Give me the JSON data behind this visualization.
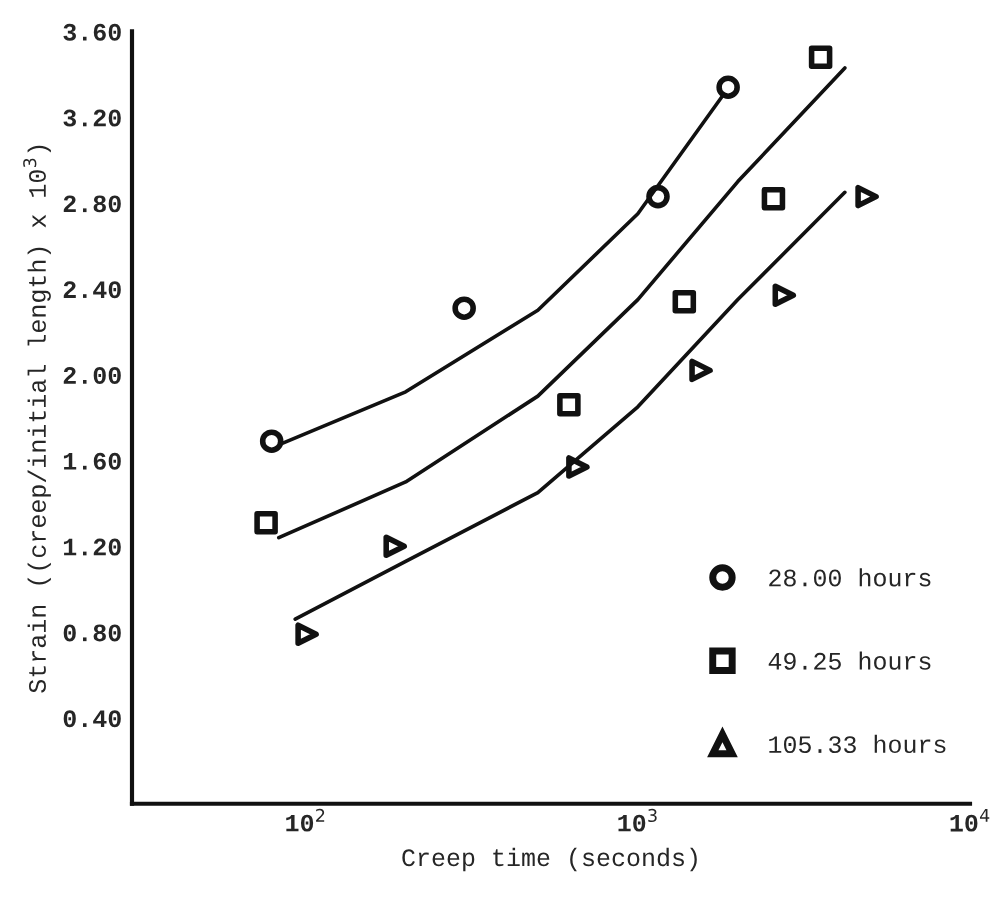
{
  "chart_data": {
    "type": "scatter",
    "xlabel": "Creep time (seconds)",
    "ylabel": "Strain ((creep/initial length) x 10$^{3}$)",
    "log": "x",
    "xlim": [
      30,
      10000
    ],
    "ylim": [
      0,
      3.6
    ],
    "xticks": [
      {
        "value": 100,
        "label": "10$^{2}$"
      },
      {
        "value": 1000,
        "label": "10$^{3}$"
      },
      {
        "value": 10000,
        "label": "10$^{4}$"
      }
    ],
    "yticks": [
      {
        "value": 0.4,
        "label": "0.40"
      },
      {
        "value": 0.8,
        "label": "0.80"
      },
      {
        "value": 1.2,
        "label": "1.20"
      },
      {
        "value": 1.6,
        "label": "1.60"
      },
      {
        "value": 2.0,
        "label": "2.00"
      },
      {
        "value": 2.4,
        "label": "2.40"
      },
      {
        "value": 2.8,
        "label": "2.80"
      },
      {
        "value": 3.2,
        "label": "3.20"
      },
      {
        "value": 3.6,
        "label": "3.60"
      }
    ],
    "grid": false,
    "legend": "bottom right",
    "series": [
      {
        "name": "28.00 hours",
        "color": "#111111",
        "marker": "circle",
        "x": [
          79,
          300,
          1150,
          1870
        ],
        "values": [
          1.69,
          2.31,
          2.83,
          3.34
        ]
      },
      {
        "name": "49.25 hours",
        "color": "#111111",
        "marker": "square",
        "x": [
          76,
          620,
          1380,
          2560,
          3550
        ],
        "values": [
          1.31,
          1.86,
          2.34,
          2.82,
          3.48
        ]
      },
      {
        "name": "105.33 hours",
        "color": "#111111",
        "marker": "triangle",
        "x": [
          101,
          186,
          660,
          1550,
          2760,
          4900
        ],
        "values": [
          0.79,
          1.2,
          1.57,
          2.02,
          2.37,
          2.83
        ]
      },
      {
        "type": "line",
        "color": "#111111",
        "marker": "none",
        "x": [
          85,
          200,
          500,
          1000,
          1800
        ],
        "values": [
          1.68,
          1.92,
          2.3,
          2.75,
          3.3
        ]
      },
      {
        "type": "line",
        "color": "#111111",
        "marker": "none",
        "x": [
          83,
          200,
          500,
          1000,
          2000,
          4200
        ],
        "values": [
          1.24,
          1.5,
          1.9,
          2.35,
          2.9,
          3.43
        ]
      },
      {
        "type": "line",
        "color": "#111111",
        "marker": "none",
        "x": [
          93,
          200,
          500,
          1000,
          2000,
          4200
        ],
        "values": [
          0.86,
          1.13,
          1.45,
          1.85,
          2.35,
          2.85
        ]
      }
    ]
  }
}
